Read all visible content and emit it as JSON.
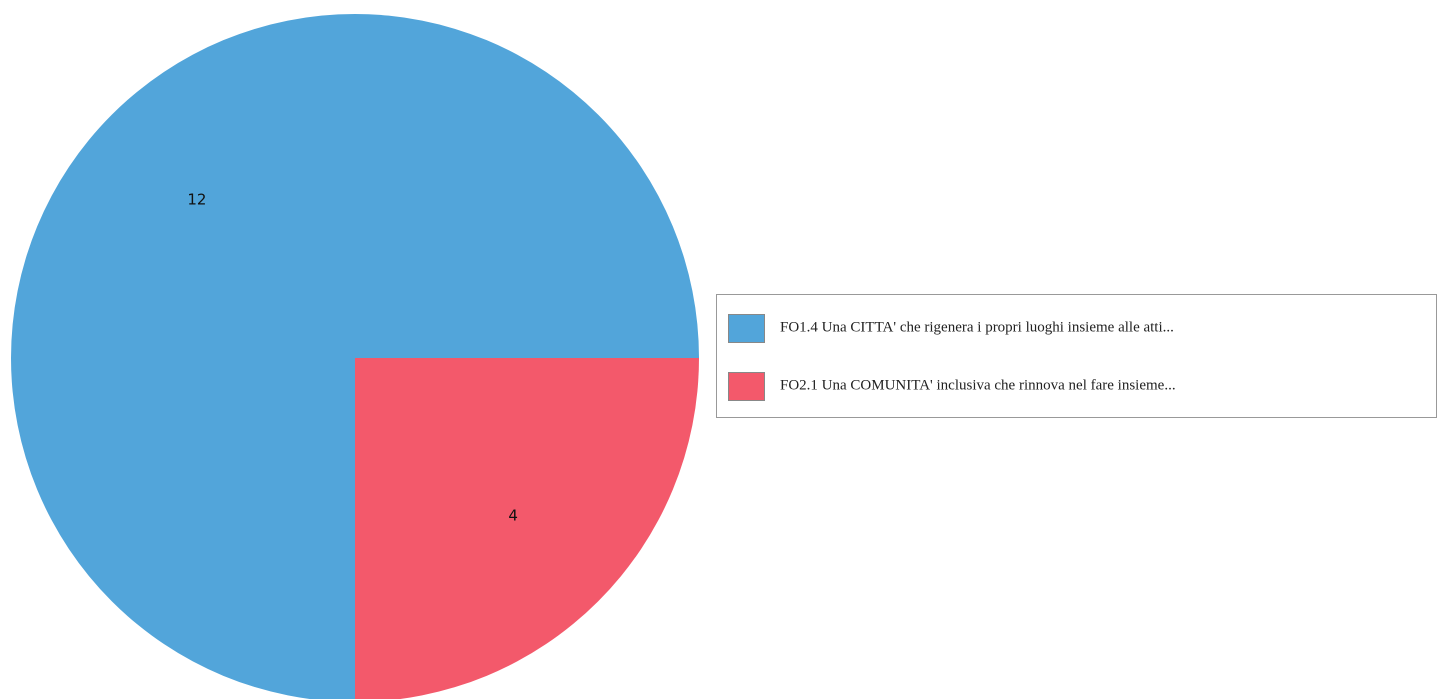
{
  "chart_data": {
    "type": "pie",
    "categories": [
      "FO1.4 Una CITTA' che rigenera i propri luoghi insieme alle atti...",
      "FO2.1 Una COMUNITA' inclusiva che rinnova nel fare insieme..."
    ],
    "values": [
      12,
      4
    ],
    "colors": [
      "#52a5da",
      "#f3596b"
    ],
    "legend": "right"
  }
}
